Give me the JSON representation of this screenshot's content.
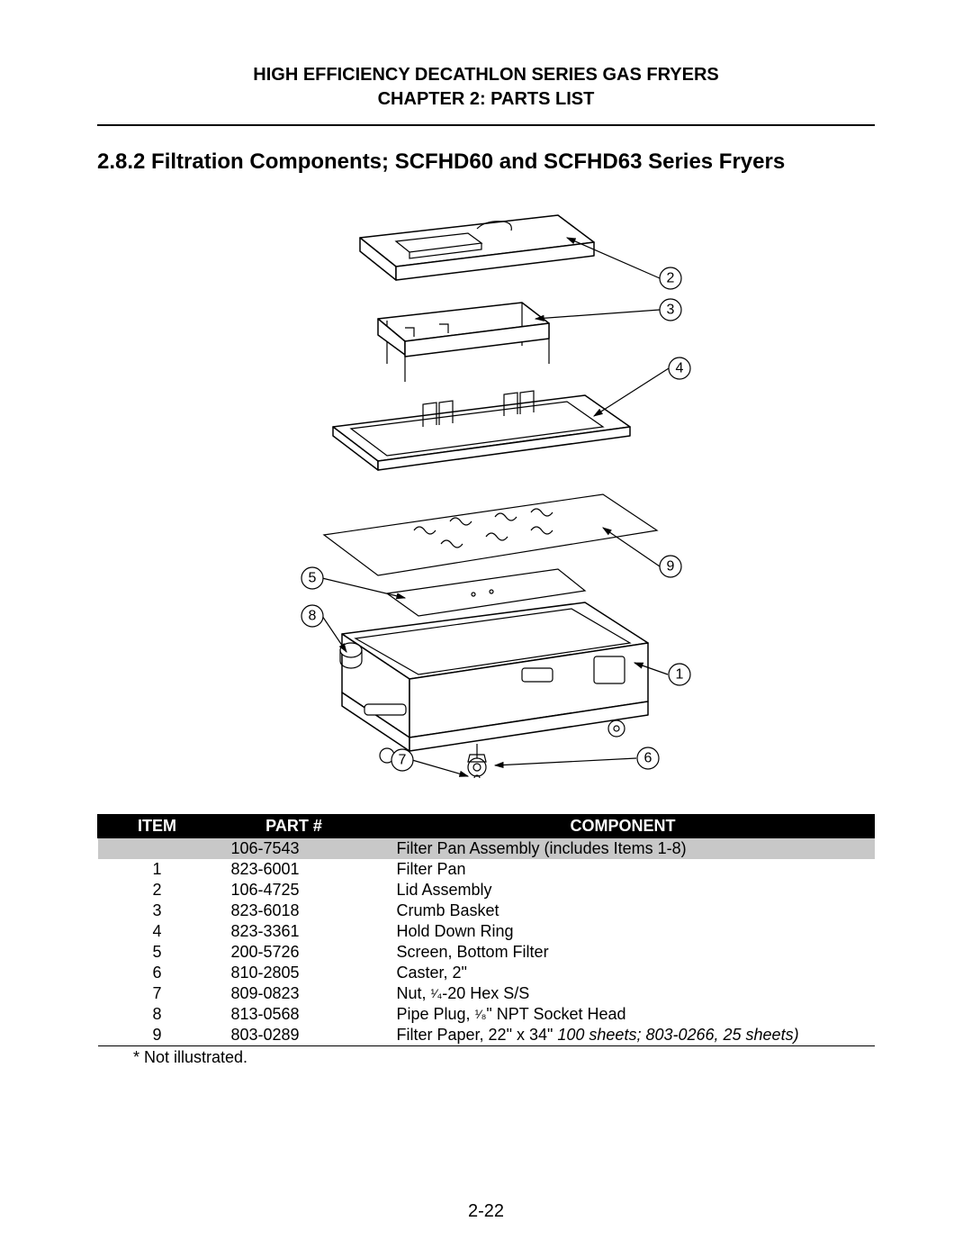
{
  "header": {
    "line1": "HIGH EFFICIENCY DECATHLON SERIES GAS FRYERS",
    "line2": "CHAPTER 2:  PARTS LIST"
  },
  "section_title": "2.8.2  Filtration Components; SCFHD60 and SCFHD63 Series Fryers",
  "callouts": {
    "c1": "1",
    "c2": "2",
    "c3": "3",
    "c4": "4",
    "c5": "5",
    "c6": "6",
    "c7": "7",
    "c8": "8",
    "c9": "9"
  },
  "table": {
    "header": {
      "item": "ITEM",
      "part": "PART #",
      "component": "COMPONENT"
    },
    "rows": [
      {
        "item": "",
        "part": "106-7543",
        "component": "Filter Pan Assembly (includes Items 1-8)",
        "shaded": true
      },
      {
        "item": "1",
        "part": "823-6001",
        "component": "Filter Pan"
      },
      {
        "item": "2",
        "part": "106-4725",
        "component": "Lid Assembly"
      },
      {
        "item": "3",
        "part": "823-6018",
        "component": "Crumb Basket"
      },
      {
        "item": "4",
        "part": "823-3361",
        "component": "Hold Down Ring"
      },
      {
        "item": "5",
        "part": "200-5726",
        "component": "Screen, Bottom Filter"
      },
      {
        "item": "6",
        "part": "810-2805",
        "component": "Caster, 2\""
      },
      {
        "item": "7",
        "part": "809-0823",
        "component_html": "Nut, <span class='frac'>¹⁄₄</span>-20 Hex S/S"
      },
      {
        "item": "8",
        "part": "813-0568",
        "component_html": "Pipe Plug, <span class='frac'>¹⁄₈</span>\" NPT Socket Head"
      },
      {
        "item": "9",
        "part": "803-0289",
        "component_html": "Filter Paper, 22\" x 34\"  <span class='italic'>100 sheets; 803-0266, 25 sheets)</span>",
        "last": true
      }
    ]
  },
  "footnote": "* Not illustrated.",
  "page_number": "2-22",
  "colors": {
    "black": "#000000",
    "white": "#ffffff",
    "shade": "#c8c8c8"
  }
}
